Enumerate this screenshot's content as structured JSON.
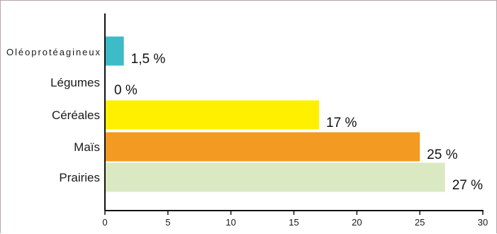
{
  "chart_data": {
    "type": "bar",
    "orientation": "horizontal",
    "title": "",
    "xlabel": "",
    "ylabel": "",
    "categories": [
      "Oléoprotéagineux",
      "Légumes",
      "Céréales",
      "Maïs",
      "Prairies"
    ],
    "values": [
      1.5,
      0,
      17,
      25,
      27
    ],
    "value_labels": [
      "1,5 %",
      "0 %",
      "17 %",
      "25 %",
      "27 %"
    ],
    "bar_colors": [
      "#3dbcc8",
      "#ffffff",
      "#fff000",
      "#f39a22",
      "#dbe9c2"
    ],
    "xlim": [
      0,
      30
    ],
    "xticks": [
      0,
      5,
      10,
      15,
      20,
      25,
      30
    ],
    "grid": false,
    "legend": "none"
  },
  "colors": {
    "axis": "#111111",
    "frame": "#b8a4aa"
  }
}
